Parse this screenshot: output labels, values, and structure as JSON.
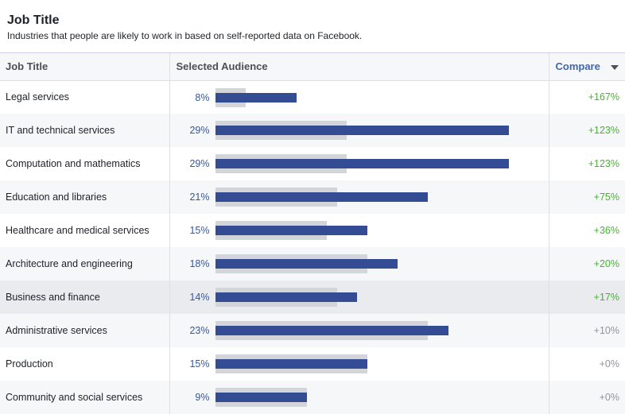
{
  "header": {
    "title": "Job Title",
    "subtitle": "Industries that people are likely to work in based on self-reported data on Facebook."
  },
  "table": {
    "col_job": "Job Title",
    "col_audience": "Selected Audience",
    "col_compare": "Compare",
    "rows": [
      {
        "name": "Legal services",
        "pct": "8%",
        "value": 8,
        "baseline": 3,
        "compare": "+167%",
        "positive": true
      },
      {
        "name": "IT and technical services",
        "pct": "29%",
        "value": 29,
        "baseline": 13,
        "compare": "+123%",
        "positive": true
      },
      {
        "name": "Computation and mathematics",
        "pct": "29%",
        "value": 29,
        "baseline": 13,
        "compare": "+123%",
        "positive": true
      },
      {
        "name": "Education and libraries",
        "pct": "21%",
        "value": 21,
        "baseline": 12,
        "compare": "+75%",
        "positive": true
      },
      {
        "name": "Healthcare and medical services",
        "pct": "15%",
        "value": 15,
        "baseline": 11,
        "compare": "+36%",
        "positive": true
      },
      {
        "name": "Architecture and engineering",
        "pct": "18%",
        "value": 18,
        "baseline": 15,
        "compare": "+20%",
        "positive": true
      },
      {
        "name": "Business and finance",
        "pct": "14%",
        "value": 14,
        "baseline": 12,
        "compare": "+17%",
        "positive": true
      },
      {
        "name": "Administrative services",
        "pct": "23%",
        "value": 23,
        "baseline": 21,
        "compare": "+10%",
        "positive": false
      },
      {
        "name": "Production",
        "pct": "15%",
        "value": 15,
        "baseline": 15,
        "compare": "+0%",
        "positive": false
      },
      {
        "name": "Community and social services",
        "pct": "9%",
        "value": 9,
        "baseline": 9,
        "compare": "+0%",
        "positive": false
      }
    ]
  },
  "colors": {
    "bar": "#344c93",
    "ghost": "#d3d5d9",
    "positive": "#42b72a",
    "neutral": "#90949c",
    "link": "#4267b2"
  }
}
